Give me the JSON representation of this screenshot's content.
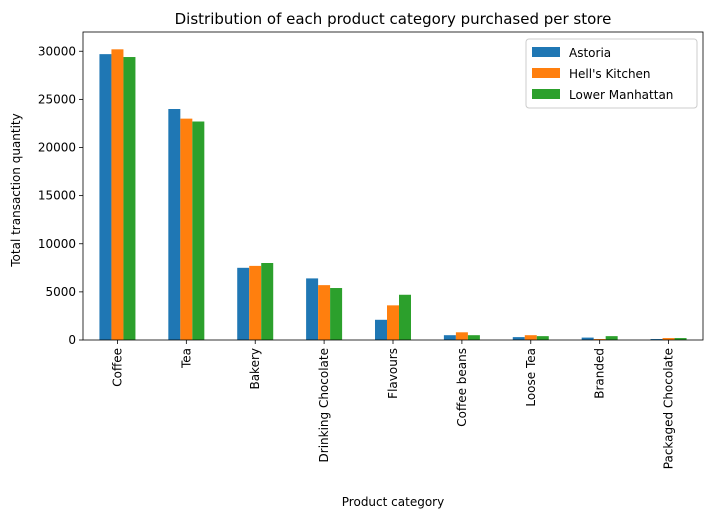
{
  "chart_data": {
    "type": "bar",
    "title": "Distribution of each product category purchased per store",
    "xlabel": "Product category",
    "ylabel": "Total transaction quantity",
    "ylim": [
      0,
      32000
    ],
    "yticks": [
      0,
      5000,
      10000,
      15000,
      20000,
      25000,
      30000
    ],
    "grid": false,
    "legend_position": "top-right",
    "categories": [
      "Coffee",
      "Tea",
      "Bakery",
      "Drinking Chocolate",
      "Flavours",
      "Coffee beans",
      "Loose Tea",
      "Branded",
      "Packaged Chocolate"
    ],
    "series": [
      {
        "name": "Astoria",
        "color": "#1f77b4",
        "values": [
          29700,
          24000,
          7500,
          6400,
          2100,
          500,
          300,
          250,
          100
        ]
      },
      {
        "name": "Hell's Kitchen",
        "color": "#ff7f0e",
        "values": [
          30200,
          23000,
          7700,
          5700,
          3600,
          800,
          500,
          100,
          200
        ]
      },
      {
        "name": "Lower Manhattan",
        "color": "#2ca02c",
        "values": [
          29400,
          22700,
          8000,
          5400,
          4700,
          500,
          400,
          400,
          200
        ]
      }
    ]
  }
}
